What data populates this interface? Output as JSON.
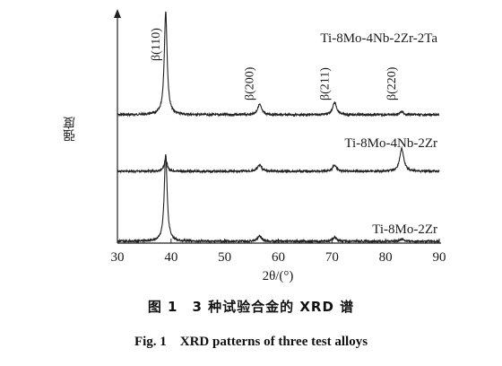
{
  "chart_data": {
    "type": "line",
    "xlabel": "2θ/(°)",
    "ylabel": "强度",
    "xlim": [
      30,
      90
    ],
    "xticks": [
      "30",
      "40",
      "50",
      "60",
      "70",
      "80",
      "90"
    ],
    "y_ticks": "none",
    "grid": false,
    "legend": "inline labels at right end of each trace",
    "line_color": "#222222",
    "series": [
      {
        "name": "Ti-8Mo-4Nb-2Zr-2Ta",
        "baseline_offset": 2,
        "peaks": [
          {
            "x": 39.0,
            "h": 1.0
          },
          {
            "x": 56.5,
            "h": 0.1
          },
          {
            "x": 70.5,
            "h": 0.12
          },
          {
            "x": 83.0,
            "h": 0.03
          }
        ]
      },
      {
        "name": "Ti-8Mo-4Nb-2Zr",
        "baseline_offset": 1,
        "peaks": [
          {
            "x": 39.0,
            "h": 0.12
          },
          {
            "x": 56.5,
            "h": 0.06
          },
          {
            "x": 70.5,
            "h": 0.06
          },
          {
            "x": 83.0,
            "h": 0.22
          }
        ]
      },
      {
        "name": "Ti-8Mo-2Zr",
        "baseline_offset": 0,
        "peaks": [
          {
            "x": 39.0,
            "h": 0.85
          },
          {
            "x": 56.5,
            "h": 0.05
          },
          {
            "x": 70.5,
            "h": 0.04
          },
          {
            "x": 83.0,
            "h": 0.02
          }
        ]
      }
    ],
    "annotations": [
      {
        "text": "β(110)",
        "x": 39.0
      },
      {
        "text": "β(200)",
        "x": 56.5
      },
      {
        "text": "β(211)",
        "x": 70.5
      },
      {
        "text": "β(220)",
        "x": 83.0
      }
    ]
  },
  "caption_cn": "图 1　3 种试验合金的 XRD 谱",
  "caption_en": "Fig. 1　XRD patterns of three test alloys"
}
